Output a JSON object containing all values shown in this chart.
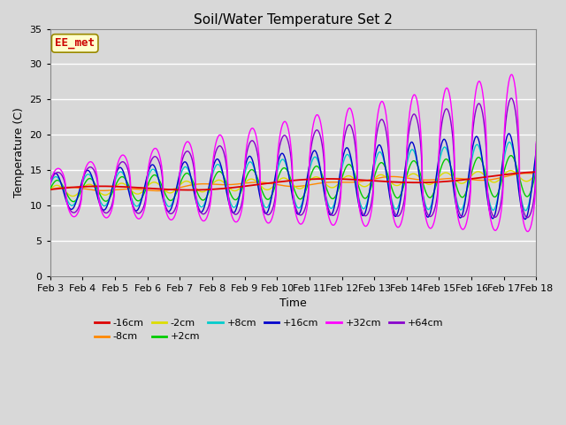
{
  "title": "Soil/Water Temperature Set 2",
  "xlabel": "Time",
  "ylabel": "Temperature (C)",
  "ylim": [
    0,
    35
  ],
  "yticks": [
    0,
    5,
    10,
    15,
    20,
    25,
    30,
    35
  ],
  "annotation_text": "EE_met",
  "annotation_color": "#cc0000",
  "annotation_bg": "#ffffcc",
  "annotation_border": "#998800",
  "x_tick_labels": [
    "Feb 3",
    "Feb 4",
    "Feb 5",
    "Feb 6",
    "Feb 7",
    "Feb 8",
    "Feb 9",
    "Feb 10",
    "Feb 11",
    "Feb 12",
    "Feb 13",
    "Feb 14",
    "Feb 15",
    "Feb 16",
    "Feb 17",
    "Feb 18"
  ],
  "series_colors": {
    "-16cm": "#dd0000",
    "-8cm": "#ff8800",
    "-2cm": "#dddd00",
    "+2cm": "#00cc00",
    "+8cm": "#00cccc",
    "+16cm": "#0000cc",
    "+32cm": "#ff00ff",
    "+64cm": "#8800cc"
  },
  "series_labels": [
    "-16cm",
    "-8cm",
    "-2cm",
    "+2cm",
    "+8cm",
    "+16cm",
    "+32cm",
    "+64cm"
  ],
  "fig_bg": "#d8d8d8",
  "plot_bg": "#d8d8d8",
  "grid_color": "#ffffff",
  "n_points": 1500
}
